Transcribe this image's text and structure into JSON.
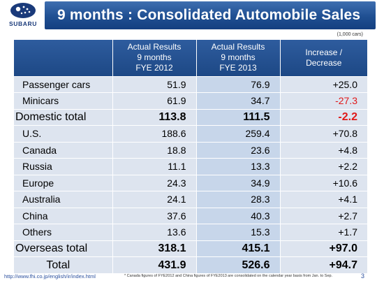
{
  "brand": {
    "logo_text": "SUBARU",
    "accent": "#1f4f92"
  },
  "title": "9 months : Consolidated Automobile Sales",
  "unit_note": "(1,000 cars)",
  "table": {
    "headers": [
      "",
      "Actual Results\n9 months\nFYE 2012",
      "Actual Results\n9 months\nFYE 2013",
      "Increase /\nDecrease"
    ],
    "rows": [
      {
        "label": "Passenger cars",
        "fye2012": "51.9",
        "fye2013": "76.9",
        "change": "+25.0",
        "type": "item",
        "negative": false
      },
      {
        "label": "Minicars",
        "fye2012": "61.9",
        "fye2013": "34.7",
        "change": "-27.3",
        "type": "item",
        "negative": true
      },
      {
        "label": "Domestic total",
        "fye2012": "113.8",
        "fye2013": "111.5",
        "change": "-2.2",
        "type": "subtotal",
        "negative": true
      },
      {
        "label": "U.S.",
        "fye2012": "188.6",
        "fye2013": "259.4",
        "change": "+70.8",
        "type": "item",
        "negative": false
      },
      {
        "label": "Canada",
        "fye2012": "18.8",
        "fye2013": "23.6",
        "change": "+4.8",
        "type": "item",
        "negative": false
      },
      {
        "label": "Russia",
        "fye2012": "11.1",
        "fye2013": "13.3",
        "change": "+2.2",
        "type": "item",
        "negative": false
      },
      {
        "label": "Europe",
        "fye2012": "24.3",
        "fye2013": "34.9",
        "change": "+10.6",
        "type": "item",
        "negative": false
      },
      {
        "label": "Australia",
        "fye2012": "24.1",
        "fye2013": "28.3",
        "change": "+4.1",
        "type": "item",
        "negative": false
      },
      {
        "label": "China",
        "fye2012": "37.6",
        "fye2013": "40.3",
        "change": "+2.7",
        "type": "item",
        "negative": false
      },
      {
        "label": "Others",
        "fye2012": "13.6",
        "fye2013": "15.3",
        "change": "+1.7",
        "type": "item",
        "negative": false
      },
      {
        "label": "Overseas total",
        "fye2012": "318.1",
        "fye2013": "415.1",
        "change": "+97.0",
        "type": "subtotal",
        "negative": false
      },
      {
        "label": "Total",
        "fye2012": "431.9",
        "fye2013": "526.6",
        "change": "+94.7",
        "type": "total",
        "negative": false
      }
    ]
  },
  "footer": {
    "url": "http://www.fhi.co.jp/english/ir/index.html",
    "note": "* Canada figures of FYE2012 and China figures of FYE2013 are consolidated on the calendar year basis from Jan. to Sep.",
    "page": "3"
  },
  "colors": {
    "negative": "#e01818",
    "header_bg": "#1f4f92",
    "row_bg": "#dde4ef",
    "highlight_col": "#c7d6ea"
  }
}
